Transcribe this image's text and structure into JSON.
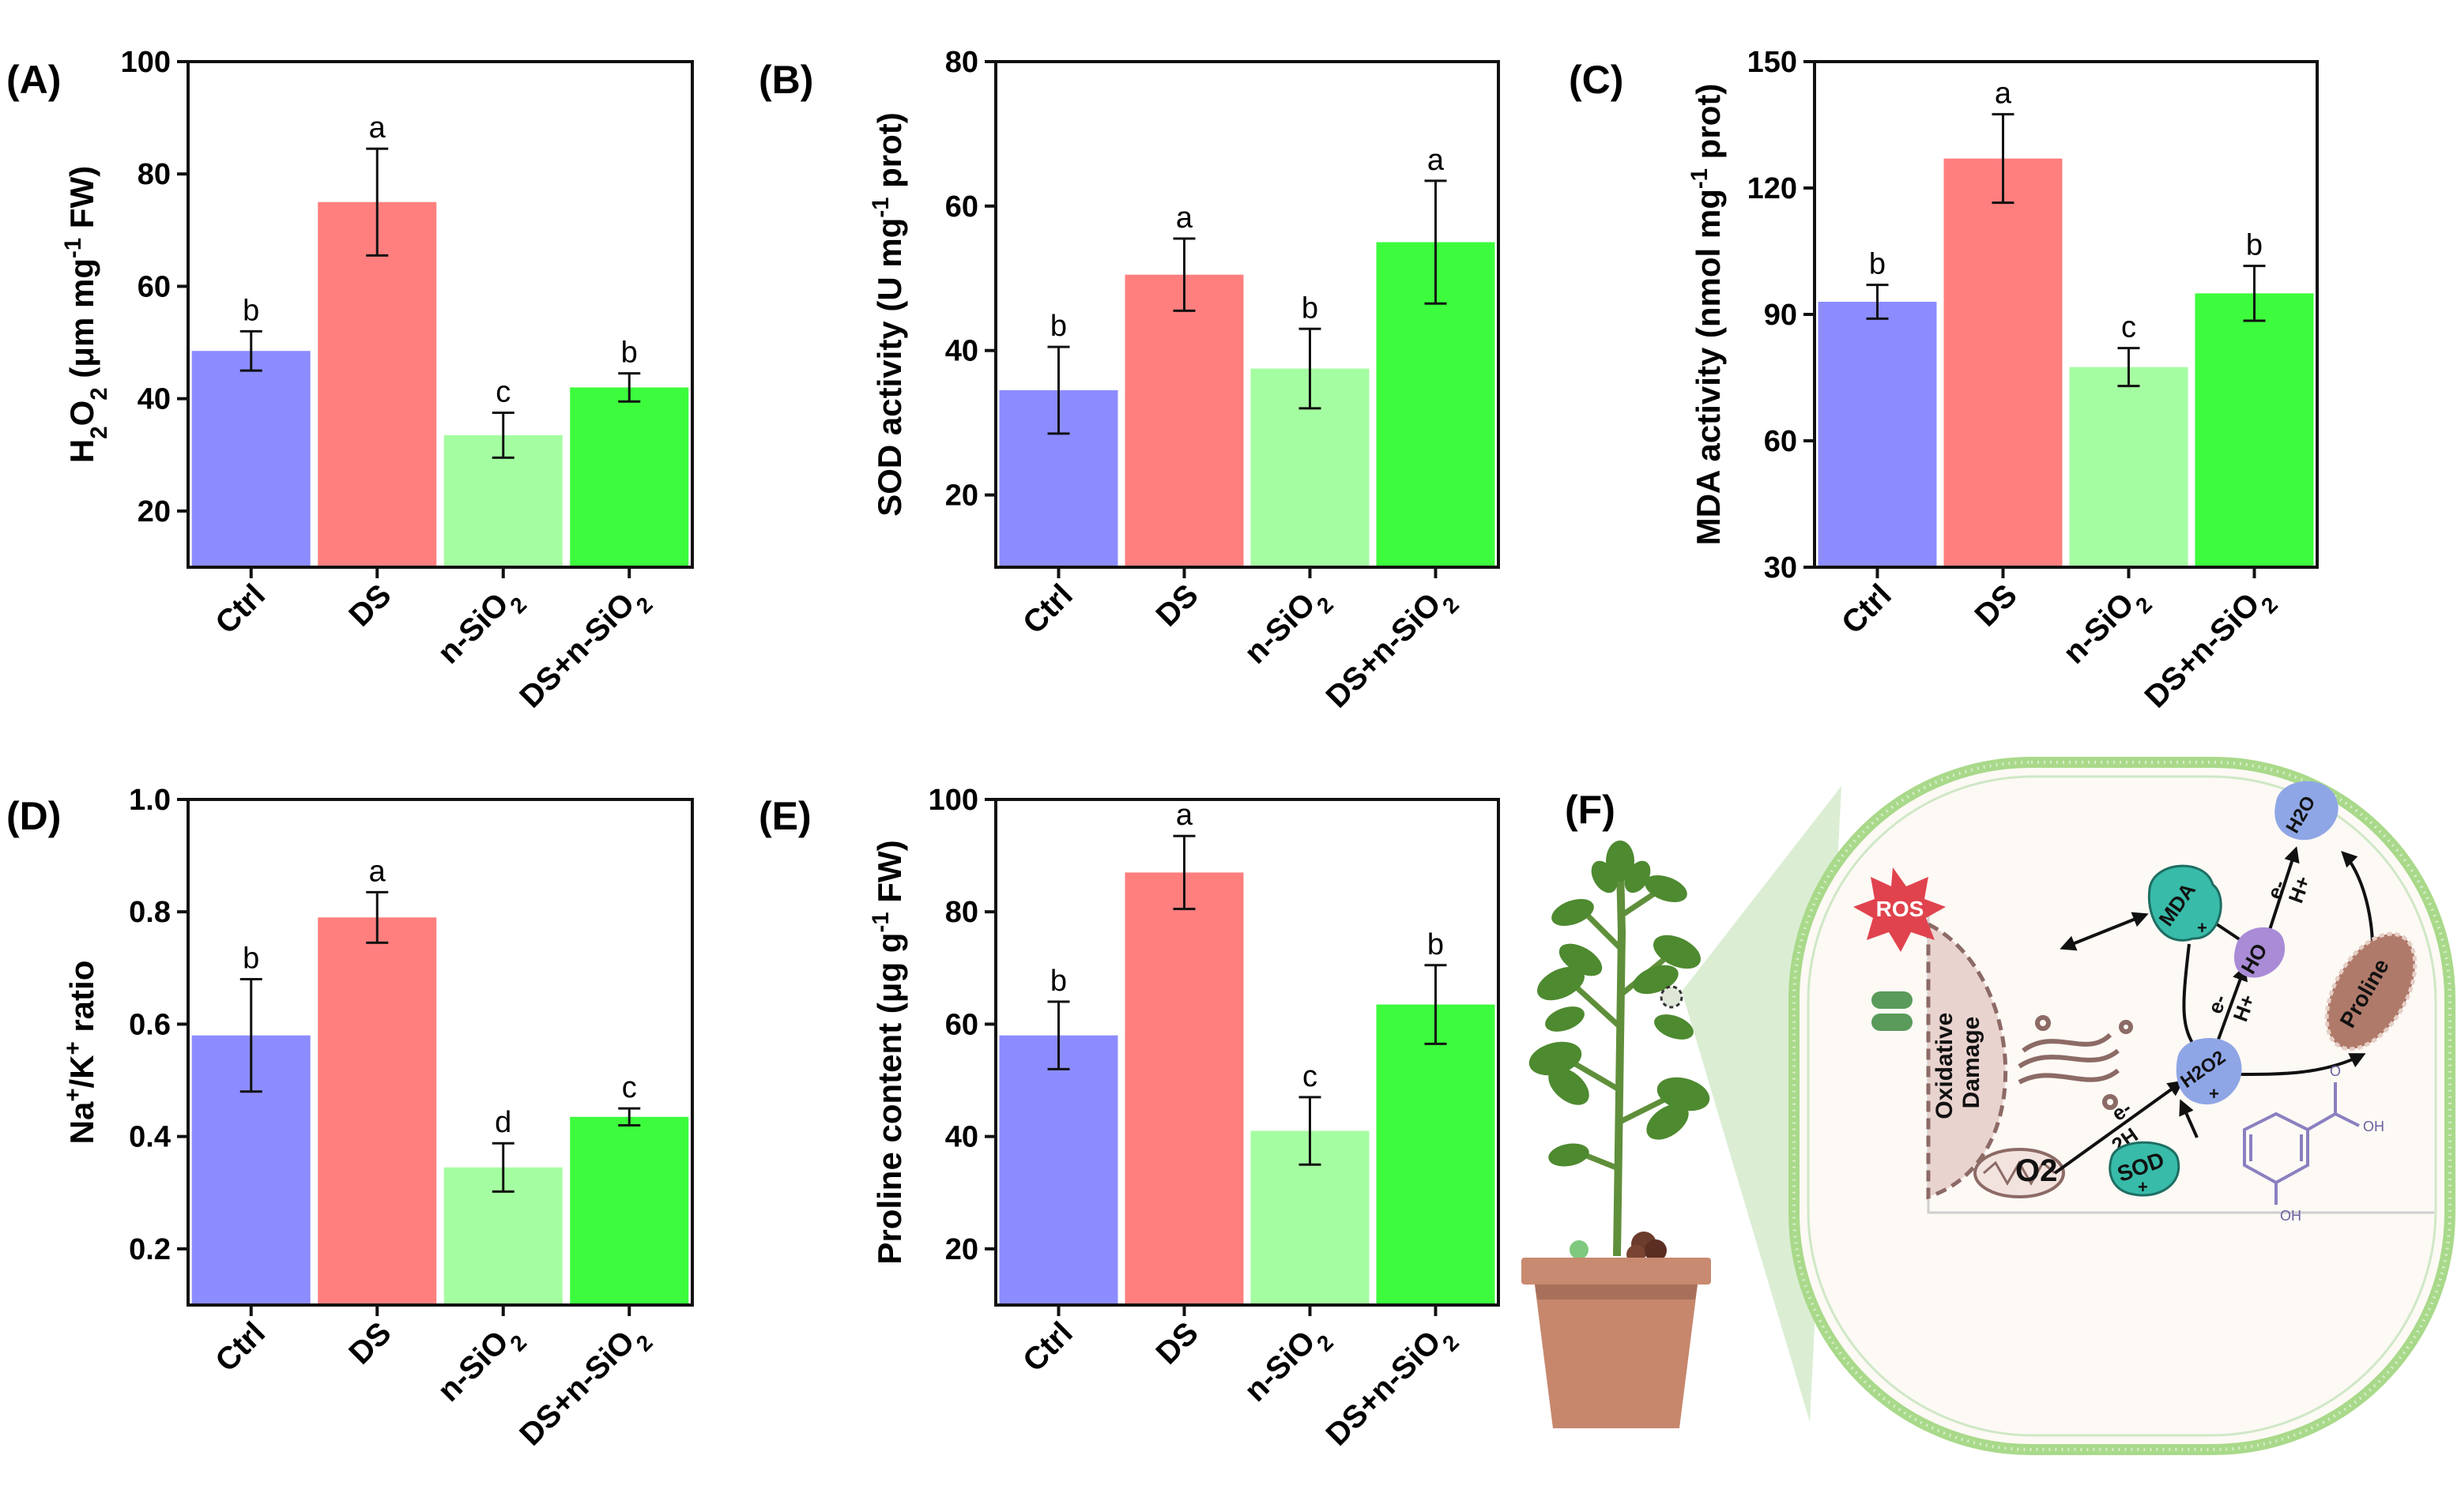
{
  "colors": {
    "Ctrl": "#8c8cff",
    "DS": "#ff7f7f",
    "n-SiO2": "#a5fda1",
    "DS+n-SiO2": "#3dfc3d",
    "axis": "#111111",
    "cell_membrane": "#a9d98a",
    "ros": "#e0434d",
    "mda": "#38bba9",
    "purple": "#a98bd6",
    "proline": "#b07a6a",
    "pot": "#c6876d",
    "leaf": "#4e8a30",
    "damage": "#8c6a65"
  },
  "chart_data": [
    {
      "id": "A",
      "panel_label": "(A)",
      "type": "bar",
      "categories": [
        "Ctrl",
        "DS",
        "n-SiO2",
        "DS+n-SiO2"
      ],
      "category_labels": [
        {
          "main": "Ctrl",
          "sub": ""
        },
        {
          "main": "DS",
          "sub": ""
        },
        {
          "main": "n-SiO",
          "sub": "2"
        },
        {
          "main": "DS+n-SiO",
          "sub": "2"
        }
      ],
      "values": [
        48.5,
        75,
        33.5,
        42
      ],
      "errors": [
        3.5,
        9.5,
        4,
        2.5
      ],
      "letters": [
        "b",
        "a",
        "c",
        "b"
      ],
      "ylabel": "H2O2 (μm mg-1 FW)",
      "ylabel_parts": [
        {
          "t": "H",
          "s": ""
        },
        {
          "t": "2",
          "s": "sub"
        },
        {
          "t": "O",
          "s": ""
        },
        {
          "t": "2",
          "s": "sub"
        },
        {
          "t": " (μm mg",
          "s": ""
        },
        {
          "t": "-1",
          "s": "sup"
        },
        {
          "t": " FW)",
          "s": ""
        }
      ],
      "ylim": [
        10,
        100
      ],
      "yticks": [
        20,
        40,
        60,
        80,
        100
      ],
      "ytick_labels": [
        "20",
        "40",
        "60",
        "80",
        "100"
      ]
    },
    {
      "id": "B",
      "panel_label": "(B)",
      "type": "bar",
      "categories": [
        "Ctrl",
        "DS",
        "n-SiO2",
        "DS+n-SiO2"
      ],
      "category_labels": [
        {
          "main": "Ctrl",
          "sub": ""
        },
        {
          "main": "DS",
          "sub": ""
        },
        {
          "main": "n-SiO",
          "sub": "2"
        },
        {
          "main": "DS+n-SiO",
          "sub": "2"
        }
      ],
      "values": [
        34.5,
        50.5,
        37.5,
        55
      ],
      "errors": [
        6,
        5,
        5.5,
        8.5
      ],
      "letters": [
        "b",
        "a",
        "b",
        "a"
      ],
      "ylabel": "SOD activity (U mg-1 prot)",
      "ylabel_parts": [
        {
          "t": "SOD activity (U mg",
          "s": ""
        },
        {
          "t": "-1",
          "s": "sup"
        },
        {
          "t": " prot)",
          "s": ""
        }
      ],
      "ylim": [
        10,
        80
      ],
      "yticks": [
        20,
        40,
        60,
        80
      ],
      "ytick_labels": [
        "20",
        "40",
        "60",
        "80"
      ]
    },
    {
      "id": "C",
      "panel_label": "(C)",
      "type": "bar",
      "categories": [
        "Ctrl",
        "DS",
        "n-SiO2",
        "DS+n-SiO2"
      ],
      "category_labels": [
        {
          "main": "Ctrl",
          "sub": ""
        },
        {
          "main": "DS",
          "sub": ""
        },
        {
          "main": "n-SiO",
          "sub": "2"
        },
        {
          "main": "DS+n-SiO",
          "sub": "2"
        }
      ],
      "values": [
        93,
        127,
        77.5,
        95
      ],
      "errors": [
        4,
        10.5,
        4.5,
        6.5
      ],
      "letters": [
        "b",
        "a",
        "c",
        "b"
      ],
      "ylabel": "MDA activity (nmol mg-1 prot)",
      "ylabel_parts": [
        {
          "t": "MDA activity (nmol mg",
          "s": ""
        },
        {
          "t": "-1",
          "s": "sup"
        },
        {
          "t": " prot)",
          "s": ""
        }
      ],
      "ylim": [
        30,
        150
      ],
      "yticks": [
        30,
        60,
        90,
        120,
        150
      ],
      "ytick_labels": [
        "30",
        "60",
        "90",
        "120",
        "150"
      ]
    },
    {
      "id": "D",
      "panel_label": "(D)",
      "type": "bar",
      "categories": [
        "Ctrl",
        "DS",
        "n-SiO2",
        "DS+n-SiO2"
      ],
      "category_labels": [
        {
          "main": "Ctrl",
          "sub": ""
        },
        {
          "main": "DS",
          "sub": ""
        },
        {
          "main": "n-SiO",
          "sub": "2"
        },
        {
          "main": "DS+n-SiO",
          "sub": "2"
        }
      ],
      "values": [
        0.58,
        0.79,
        0.345,
        0.435
      ],
      "errors": [
        0.1,
        0.045,
        0.043,
        0.015
      ],
      "letters": [
        "b",
        "a",
        "d",
        "c"
      ],
      "ylabel": "Na+/K+ ratio",
      "ylabel_parts": [
        {
          "t": "Na",
          "s": ""
        },
        {
          "t": "+",
          "s": "sup"
        },
        {
          "t": "/K",
          "s": ""
        },
        {
          "t": "+",
          "s": "sup"
        },
        {
          "t": " ratio",
          "s": ""
        }
      ],
      "ylim": [
        0.1,
        1.0
      ],
      "yticks": [
        0.2,
        0.4,
        0.6,
        0.8,
        1.0
      ],
      "ytick_labels": [
        "0.2",
        "0.4",
        "0.6",
        "0.8",
        "1.0"
      ]
    },
    {
      "id": "E",
      "panel_label": "(E)",
      "type": "bar",
      "categories": [
        "Ctrl",
        "DS",
        "n-SiO2",
        "DS+n-SiO2"
      ],
      "category_labels": [
        {
          "main": "Ctrl",
          "sub": ""
        },
        {
          "main": "DS",
          "sub": ""
        },
        {
          "main": "n-SiO",
          "sub": "2"
        },
        {
          "main": "DS+n-SiO",
          "sub": "2"
        }
      ],
      "values": [
        58,
        87,
        41,
        63.5
      ],
      "errors": [
        6,
        6.5,
        6,
        7
      ],
      "letters": [
        "b",
        "a",
        "c",
        "b"
      ],
      "ylabel": "Proline content (μg g-1 FW)",
      "ylabel_parts": [
        {
          "t": "Proline content (μg g",
          "s": ""
        },
        {
          "t": "-1",
          "s": "sup"
        },
        {
          "t": " FW)",
          "s": ""
        }
      ],
      "ylim": [
        10,
        100
      ],
      "yticks": [
        20,
        40,
        60,
        80,
        100
      ],
      "ytick_labels": [
        "20",
        "40",
        "60",
        "80",
        "100"
      ]
    }
  ],
  "diagram": {
    "panel_label": "(F)",
    "ros": "ROS",
    "oxidative_damage": [
      "Oxidative",
      "Damage"
    ],
    "mda": "MDA",
    "ho": "HO",
    "h2o": "H2O",
    "proline": "Proline",
    "h2o2": "H2O2",
    "o2": "O2",
    "sod": "SOD",
    "e_minus": "e-",
    "h_plus": "H+",
    "two_h": "2H",
    "plus": "+",
    "oh": "OH",
    "o": "O"
  }
}
